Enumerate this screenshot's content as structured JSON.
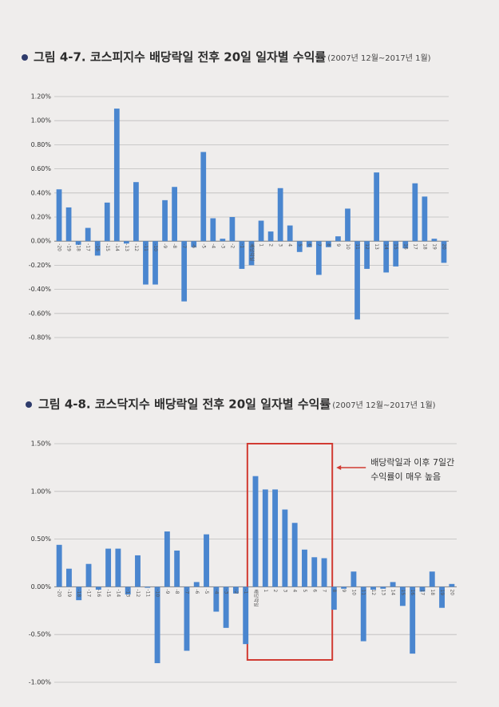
{
  "chart_data": [
    {
      "type": "bar",
      "title": "그림 4-7. 코스피지수 배당락일 전후 20일 일자별 수익률",
      "subtitle": "(2007년 12월~2017년 1월)",
      "categories": [
        "-20",
        "-19",
        "-18",
        "-17",
        "-16",
        "-15",
        "-14",
        "-13",
        "-12",
        "-11",
        "-10",
        "-9",
        "-8",
        "-7",
        "-6",
        "-5",
        "-4",
        "-3",
        "-2",
        "-1",
        "배당락일",
        "1",
        "2",
        "3",
        "4",
        "5",
        "6",
        "7",
        "8",
        "9",
        "10",
        "11",
        "12",
        "13",
        "14",
        "15",
        "16",
        "17",
        "18",
        "19",
        "20"
      ],
      "values": [
        0.43,
        0.28,
        -0.03,
        0.11,
        -0.12,
        0.32,
        1.1,
        -0.02,
        0.49,
        -0.36,
        -0.36,
        0.34,
        0.45,
        -0.5,
        -0.05,
        0.74,
        0.19,
        0.02,
        0.2,
        -0.23,
        -0.2,
        0.17,
        0.08,
        0.44,
        0.13,
        -0.09,
        -0.05,
        -0.28,
        -0.05,
        0.04,
        0.27,
        -0.65,
        -0.23,
        0.57,
        -0.26,
        -0.21,
        -0.06,
        0.48,
        0.37,
        0.02,
        -0.18
      ],
      "color": "#4a86cf",
      "ylim": [
        -0.8,
        1.2
      ],
      "yticks": [
        {
          "value": -0.8,
          "label": "-0.80%"
        },
        {
          "value": -0.6,
          "label": "-0.60%"
        },
        {
          "value": -0.4,
          "label": "-0.40%"
        },
        {
          "value": -0.2,
          "label": "-0.20%"
        },
        {
          "value": 0,
          "label": "0.00%"
        },
        {
          "value": 0.2,
          "label": "0.20%"
        },
        {
          "value": 0.4,
          "label": "0.40%"
        },
        {
          "value": 0.6,
          "label": "0.60%"
        },
        {
          "value": 0.8,
          "label": "0.80%"
        },
        {
          "value": 1.0,
          "label": "1.00%"
        },
        {
          "value": 1.2,
          "label": "1.20%"
        }
      ],
      "grid": true
    },
    {
      "type": "bar",
      "title": "그림 4-8. 코스닥지수 배당락일 전후 20일 일자별 수익률",
      "subtitle": "(2007년 12월~2017년 1월)",
      "categories": [
        "-20",
        "-19",
        "-18",
        "-17",
        "-16",
        "-15",
        "-14",
        "-13",
        "-12",
        "-11",
        "-10",
        "-9",
        "-8",
        "-7",
        "-6",
        "-5",
        "-4",
        "-3",
        "-2",
        "-1",
        "배당락일",
        "1",
        "2",
        "3",
        "4",
        "5",
        "6",
        "7",
        "8",
        "9",
        "10",
        "11",
        "12",
        "13",
        "14",
        "15",
        "16",
        "17",
        "18",
        "19",
        "20"
      ],
      "values": [
        0.44,
        0.19,
        -0.14,
        0.24,
        -0.03,
        0.4,
        0.4,
        -0.08,
        0.33,
        -0.01,
        -0.8,
        0.58,
        0.38,
        -0.67,
        0.05,
        0.55,
        -0.26,
        -0.43,
        -0.07,
        -0.6,
        1.16,
        1.02,
        1.02,
        0.81,
        0.67,
        0.39,
        0.31,
        0.3,
        -0.24,
        -0.02,
        0.16,
        -0.57,
        -0.03,
        -0.02,
        0.05,
        -0.2,
        -0.7,
        -0.05,
        0.16,
        -0.22,
        0.03
      ],
      "color": "#4a86cf",
      "ylim": [
        -1.0,
        1.5
      ],
      "yticks": [
        {
          "value": -1.0,
          "label": "-1.00%"
        },
        {
          "value": -0.5,
          "label": "-0.50%"
        },
        {
          "value": 0,
          "label": "0.00%"
        },
        {
          "value": 0.5,
          "label": "0.50%"
        },
        {
          "value": 1.0,
          "label": "1.00%"
        },
        {
          "value": 1.5,
          "label": "1.50%"
        }
      ],
      "grid": true,
      "annotation": [
        "배당락일과 이후 7일간",
        "수익률이 매우 높음"
      ]
    }
  ]
}
